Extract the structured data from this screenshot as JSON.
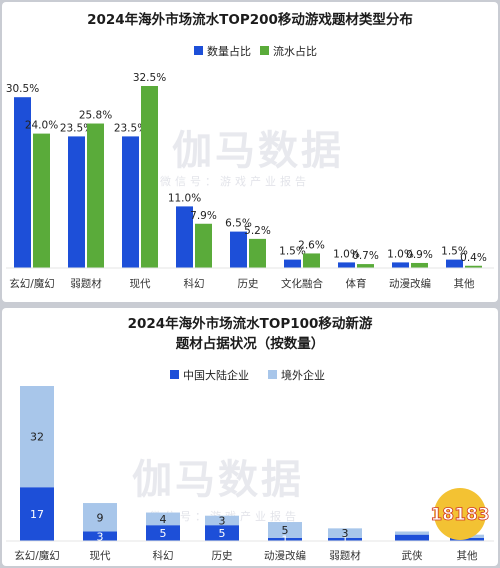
{
  "watermark": {
    "brand": "伽马数据",
    "tagline": "微信号：游戏产业报告"
  },
  "badge": {
    "text": "18183"
  },
  "colors": {
    "blue": "#1d4fd8",
    "green": "#5aab3a",
    "light_blue": "#a8c6ea",
    "dark_blue": "#1d4fd8"
  },
  "chart_data": [
    {
      "type": "bar",
      "title": "2024年海外市场流水TOP200移动游戏题材类型分布",
      "categories": [
        "玄幻/魔幻",
        "弱题材",
        "现代",
        "科幻",
        "历史",
        "文化融合",
        "体育",
        "动漫改编",
        "其他"
      ],
      "series": [
        {
          "name": "数量占比",
          "values": [
            30.5,
            23.5,
            23.5,
            11.0,
            6.5,
            1.5,
            1.0,
            1.0,
            1.5
          ]
        },
        {
          "name": "流水占比",
          "values": [
            24.0,
            25.8,
            32.5,
            7.9,
            5.2,
            2.6,
            0.7,
            0.9,
            0.4
          ]
        }
      ],
      "value_labels": [
        [
          "30.5%",
          "23.5%",
          "23.5%",
          "11.0%",
          "6.5%",
          "1.5%",
          "1.0%",
          "1.0%",
          "1.5%"
        ],
        [
          "24.0%",
          "25.8%",
          "32.5%",
          "7.9%",
          "5.2%",
          "2.6%",
          "0.7%",
          "0.9%",
          "0.4%"
        ]
      ],
      "legend_position": "top-right"
    },
    {
      "type": "bar",
      "stacked": true,
      "title_lines": [
        "2024年海外市场流水TOP100移动新游",
        "题材占据状况（按数量）"
      ],
      "categories": [
        "玄幻/魔幻",
        "现代",
        "科幻",
        "历史",
        "动漫改编",
        "弱题材",
        "武侠",
        "其他"
      ],
      "series": [
        {
          "name": "中国大陆企业",
          "values": [
            17,
            3,
            5,
            5,
            1,
            1,
            2,
            1
          ]
        },
        {
          "name": "境外企业",
          "values": [
            32,
            9,
            4,
            3,
            5,
            3,
            1,
            1
          ]
        }
      ],
      "value_labels": [
        [
          "17",
          "3",
          "5",
          "5",
          "1",
          "1",
          "",
          ""
        ],
        [
          "32",
          "9",
          "4",
          "3",
          "5",
          "3",
          "",
          ""
        ]
      ],
      "legend_position": "top-center"
    }
  ]
}
